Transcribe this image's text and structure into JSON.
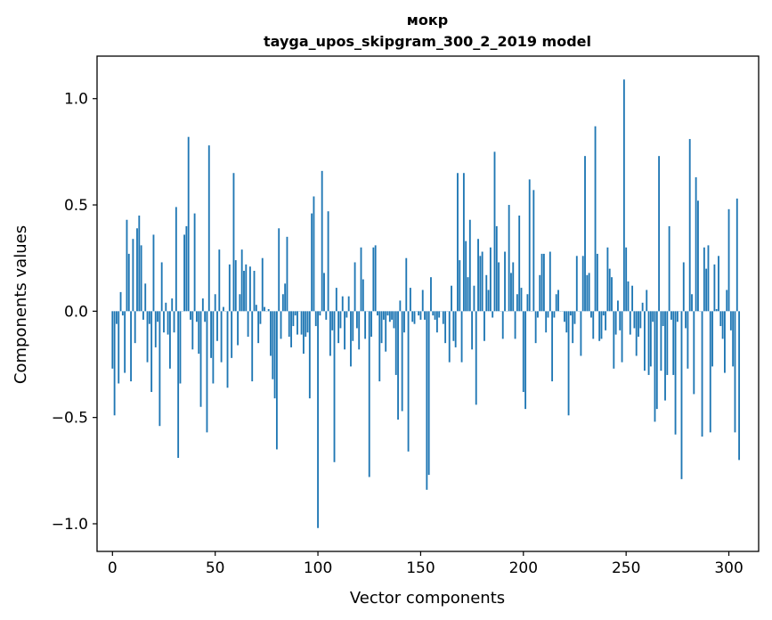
{
  "chart_data": {
    "type": "bar",
    "title_line1": "мокр",
    "title_line2": "tayga_upos_skipgram_300_2_2019 model",
    "xlabel": "Vector components",
    "ylabel": "Components values",
    "xlim": [
      -7.5,
      314.5
    ],
    "ylim": [
      -1.13,
      1.2
    ],
    "x_ticks": [
      0,
      50,
      100,
      150,
      200,
      250,
      300
    ],
    "x_tick_labels": [
      "0",
      "50",
      "100",
      "150",
      "200",
      "250",
      "300"
    ],
    "y_ticks": [
      -1.0,
      -0.5,
      0.0,
      0.5,
      1.0
    ],
    "y_tick_labels": [
      "−1.0",
      "−0.5",
      "0.0",
      "0.5",
      "1.0"
    ],
    "bar_color": "#1f77b4",
    "values": [
      -0.27,
      -0.49,
      -0.06,
      -0.34,
      0.09,
      -0.02,
      -0.29,
      0.43,
      0.27,
      -0.33,
      0.34,
      -0.15,
      0.39,
      0.45,
      0.31,
      -0.04,
      0.13,
      -0.24,
      -0.06,
      -0.38,
      0.36,
      -0.17,
      -0.05,
      -0.54,
      0.23,
      -0.1,
      0.04,
      -0.11,
      -0.27,
      0.06,
      -0.1,
      0.49,
      -0.69,
      -0.34,
      0.0,
      0.36,
      0.4,
      0.82,
      -0.04,
      -0.18,
      0.46,
      -0.05,
      -0.2,
      -0.45,
      0.06,
      -0.05,
      -0.57,
      0.78,
      -0.22,
      -0.34,
      0.08,
      -0.14,
      0.29,
      -0.24,
      0.02,
      0.0,
      -0.36,
      0.22,
      -0.22,
      0.65,
      0.24,
      -0.16,
      0.08,
      0.29,
      0.19,
      0.22,
      -0.12,
      0.21,
      -0.33,
      0.19,
      0.03,
      -0.15,
      -0.06,
      0.25,
      0.02,
      0.0,
      0.01,
      -0.21,
      -0.32,
      -0.41,
      -0.65,
      0.39,
      -0.13,
      0.08,
      0.13,
      0.35,
      -0.12,
      -0.17,
      -0.07,
      -0.02,
      -0.11,
      0.0,
      -0.11,
      -0.2,
      -0.12,
      -0.1,
      -0.41,
      0.46,
      0.54,
      -0.07,
      -1.02,
      -0.02,
      0.66,
      0.18,
      -0.04,
      0.47,
      -0.21,
      -0.09,
      -0.71,
      0.11,
      -0.15,
      -0.08,
      0.07,
      -0.18,
      -0.03,
      0.07,
      -0.26,
      -0.14,
      0.23,
      -0.08,
      -0.18,
      0.3,
      0.15,
      -0.13,
      0.0,
      -0.78,
      -0.12,
      0.3,
      0.31,
      -0.02,
      -0.33,
      -0.15,
      -0.04,
      -0.19,
      -0.02,
      -0.05,
      -0.04,
      -0.08,
      -0.3,
      -0.51,
      0.05,
      -0.47,
      -0.1,
      0.25,
      -0.66,
      0.11,
      -0.05,
      -0.06,
      0.0,
      -0.02,
      -0.04,
      0.1,
      -0.04,
      -0.84,
      -0.77,
      0.16,
      -0.02,
      -0.04,
      -0.1,
      -0.03,
      0.0,
      -0.06,
      -0.15,
      0.0,
      -0.24,
      0.12,
      -0.14,
      -0.17,
      0.65,
      0.24,
      -0.24,
      0.65,
      0.33,
      0.16,
      0.43,
      -0.18,
      0.12,
      -0.44,
      0.34,
      0.26,
      0.28,
      -0.14,
      0.17,
      0.1,
      0.3,
      -0.03,
      0.75,
      0.4,
      0.23,
      0.0,
      -0.13,
      0.28,
      0.0,
      0.5,
      0.18,
      0.23,
      -0.13,
      0.08,
      0.45,
      0.11,
      -0.38,
      -0.46,
      0.08,
      0.62,
      0.0,
      0.57,
      -0.15,
      -0.03,
      0.17,
      0.27,
      0.27,
      -0.1,
      -0.03,
      0.28,
      -0.33,
      -0.03,
      0.08,
      0.1,
      0.0,
      0.0,
      -0.05,
      -0.1,
      -0.49,
      -0.02,
      -0.15,
      -0.06,
      0.26,
      0.0,
      -0.21,
      0.26,
      0.73,
      0.17,
      0.18,
      -0.03,
      -0.13,
      0.87,
      0.27,
      -0.14,
      -0.13,
      -0.02,
      -0.09,
      0.3,
      0.2,
      0.16,
      -0.27,
      -0.11,
      0.05,
      -0.09,
      -0.24,
      1.09,
      0.3,
      0.14,
      -0.11,
      0.12,
      -0.08,
      -0.21,
      -0.12,
      -0.08,
      0.04,
      -0.28,
      0.1,
      -0.3,
      -0.26,
      -0.05,
      -0.52,
      -0.46,
      0.73,
      -0.28,
      -0.07,
      -0.42,
      -0.3,
      0.4,
      -0.04,
      -0.3,
      -0.58,
      -0.05,
      0.0,
      -0.79,
      0.23,
      -0.08,
      -0.27,
      0.81,
      0.08,
      -0.39,
      0.63,
      0.52,
      0.0,
      -0.59,
      0.3,
      0.2,
      0.31,
      -0.57,
      -0.26,
      0.22,
      0.01,
      0.26,
      -0.07,
      -0.13,
      -0.29,
      0.1,
      0.48,
      -0.09,
      -0.26,
      -0.57,
      0.53,
      -0.7
    ]
  }
}
